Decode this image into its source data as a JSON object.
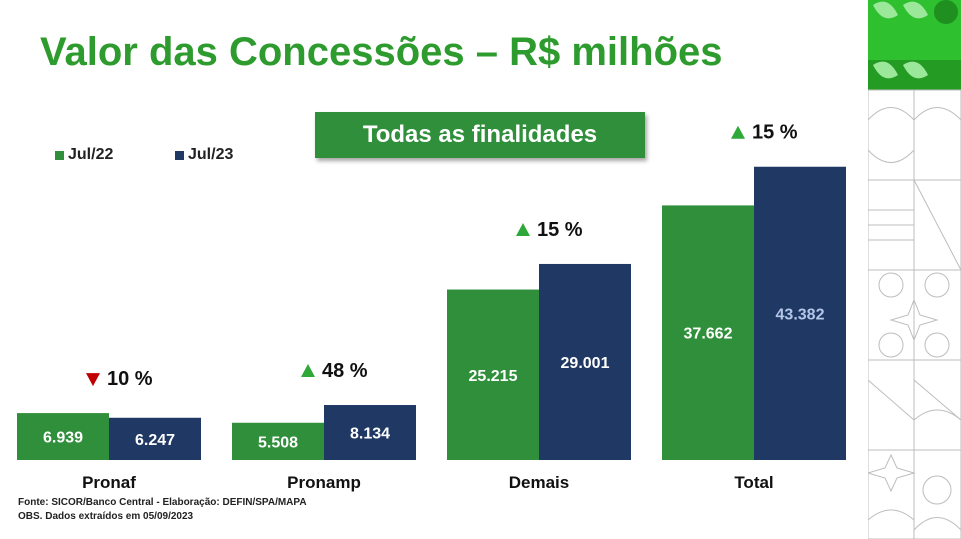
{
  "title": "Valor das Concessões – R$ milhões",
  "banner": "Todas as finalidades",
  "legend": [
    {
      "label": "Jul/22",
      "color": "#2f8f3a"
    },
    {
      "label": "Jul/23",
      "color": "#203864"
    }
  ],
  "chart_data": {
    "type": "bar",
    "categories": [
      "Pronaf",
      "Pronamp",
      "Demais",
      "Total"
    ],
    "series": [
      {
        "name": "Jul/22",
        "values": [
          6.939,
          5.508,
          25.215,
          37.662
        ],
        "labels": [
          "6.939",
          "5.508",
          "25.215",
          "37.662"
        ],
        "color": "#2f8f3a"
      },
      {
        "name": "Jul/23",
        "values": [
          6.247,
          8.134,
          29.001,
          43.382
        ],
        "labels": [
          "6.247",
          "8.134",
          "29.001",
          "43.382"
        ],
        "color": "#203864"
      }
    ],
    "changes": [
      {
        "direction": "down",
        "text": "10 %"
      },
      {
        "direction": "up",
        "text": "48 %"
      },
      {
        "direction": "up",
        "text": "15 %"
      },
      {
        "direction": "up",
        "text": "15 %"
      }
    ],
    "ylim": [
      0,
      45
    ]
  },
  "footer": {
    "source": "Fonte: SICOR/Banco Central - Elaboração: DEFIN/SPA/MAPA",
    "obs": "OBS. Dados extraídos em 05/09/2023"
  }
}
